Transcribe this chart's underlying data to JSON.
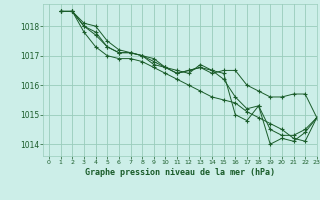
{
  "bg_color": "#cceee8",
  "plot_bg_color": "#cceee8",
  "grid_color": "#99ccbb",
  "line_color": "#1a5c2a",
  "xlabel": "Graphe pression niveau de la mer (hPa)",
  "ylim": [
    1013.6,
    1018.75
  ],
  "xlim": [
    -0.5,
    23
  ],
  "yticks": [
    1014,
    1015,
    1016,
    1017,
    1018
  ],
  "xticks": [
    0,
    1,
    2,
    3,
    4,
    5,
    6,
    7,
    8,
    9,
    10,
    11,
    12,
    13,
    14,
    15,
    16,
    17,
    18,
    19,
    20,
    21,
    22,
    23
  ],
  "series": [
    [
      1018.5,
      1018.5,
      1018.1,
      1018.0,
      1017.5,
      1017.2,
      1017.1,
      1017.0,
      1016.9,
      1016.6,
      1016.4,
      1016.5,
      1016.6,
      1016.5,
      1016.4,
      1015.0,
      1014.8,
      1015.3,
      1014.0,
      1014.2,
      1014.1,
      1014.4,
      1014.9
    ],
    [
      1018.5,
      1018.5,
      1018.0,
      1017.7,
      1017.3,
      1017.1,
      1017.1,
      1017.0,
      1016.8,
      1016.6,
      1016.5,
      1016.4,
      1016.7,
      1016.5,
      1016.2,
      1015.6,
      1015.2,
      1015.3,
      1014.5,
      1014.3,
      1014.3,
      1014.5,
      1014.9
    ],
    [
      1018.5,
      1018.5,
      1018.0,
      1017.8,
      1017.3,
      1017.1,
      1017.1,
      1017.0,
      1016.7,
      1016.6,
      1016.4,
      1016.5,
      1016.6,
      1016.4,
      1016.5,
      1016.5,
      1016.0,
      1015.8,
      1015.6,
      1015.6,
      1015.7,
      1015.7,
      1014.9
    ],
    [
      1018.5,
      1018.5,
      1017.8,
      1017.3,
      1017.0,
      1016.9,
      1016.9,
      1016.8,
      1016.6,
      1016.4,
      1016.2,
      1016.0,
      1015.8,
      1015.6,
      1015.5,
      1015.4,
      1015.1,
      1014.9,
      1014.7,
      1014.5,
      1014.2,
      1014.1,
      1014.9
    ]
  ],
  "x_values": [
    1,
    2,
    3,
    4,
    5,
    6,
    7,
    8,
    9,
    10,
    11,
    12,
    13,
    14,
    15,
    16,
    17,
    18,
    19,
    20,
    21,
    22,
    23
  ]
}
